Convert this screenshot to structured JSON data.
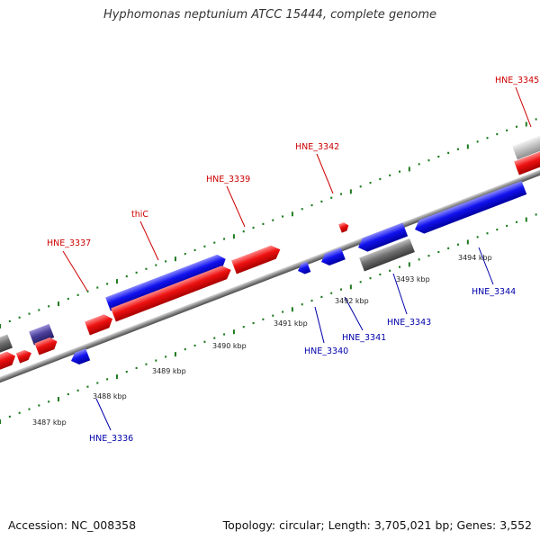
{
  "title": "Hyphomonas neptunium ATCC 15444, complete genome",
  "footer": {
    "accession": "Accession: NC_008358",
    "summary": "Topology: circular; Length: 3,705,021 bp; Genes: 3,552"
  },
  "colors": {
    "forward_label": "#cc0000",
    "reverse_label": "#0000aa",
    "tick": "#1d7a1d",
    "backbone": "#888888",
    "forward_gene": "#ee1111",
    "reverse_gene": "#1111ee",
    "other_gene": "#777777",
    "rna_gene": "#bbbbbb",
    "purple_gene": "#4a3f99"
  },
  "scale_labels": [
    "3487 kbp",
    "3488 kbp",
    "3489 kbp",
    "3490 kbp",
    "3491 kbp",
    "3492 kbp",
    "3493 kbp",
    "3494 kbp"
  ],
  "forward_gene_labels": [
    "HNE_3337",
    "thiC",
    "HNE_3339",
    "HNE_3342",
    "HNE_3345"
  ],
  "reverse_gene_labels": [
    "HNE_3336",
    "HNE_3340",
    "HNE_3341",
    "HNE_3343",
    "HNE_3344"
  ]
}
